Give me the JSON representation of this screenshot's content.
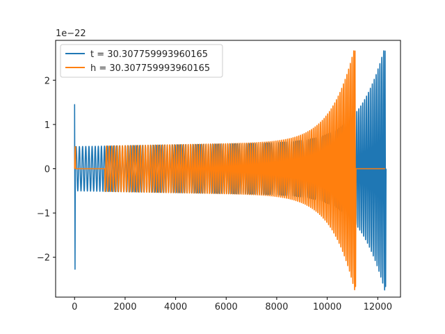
{
  "chart_data": {
    "type": "line",
    "title": "",
    "xlabel": "",
    "ylabel": "",
    "offset_label": "1e−22",
    "xlim": [
      -750,
      12900
    ],
    "ylim": [
      -2.9,
      2.9
    ],
    "xticks": [
      0,
      2000,
      4000,
      6000,
      8000,
      10000,
      12000
    ],
    "yticks": [
      -2,
      -1,
      0,
      1,
      2
    ],
    "xtick_labels": [
      "0",
      "2000",
      "4000",
      "6000",
      "8000",
      "10000",
      "12000"
    ],
    "ytick_labels": [
      "−2",
      "−1",
      "0",
      "1",
      "2"
    ],
    "grid": false,
    "legend_position": "top-left",
    "series": [
      {
        "name": "t = 30.307759993960165",
        "color": "#1f77b4",
        "envelope": {
          "spike_x": 0,
          "spike_min": -2.27,
          "spike_max": 1.45,
          "start_x": 30,
          "end_x": 12290,
          "amp_start": 0.5,
          "amp_end": 2.66,
          "flat_after_peak": 0.0
        },
        "notable_points": {
          "x": [
            0,
            12290
          ],
          "y_max": [
            1.45,
            2.66
          ],
          "y_min": [
            -2.27,
            -2.66
          ]
        }
      },
      {
        "name": "h = 30.307759993960165",
        "color": "#ff7f0e",
        "envelope": {
          "start_x": 0,
          "end_x": 11100,
          "amp_start": 0.5,
          "amp_end": 2.66,
          "zero_segments": [
            [
              40,
              1200
            ],
            [
              11100,
              12290
            ]
          ]
        },
        "notable_points": {
          "x": [
            11080
          ],
          "y_max": [
            2.66
          ],
          "y_min": [
            -2.66
          ]
        }
      }
    ]
  }
}
